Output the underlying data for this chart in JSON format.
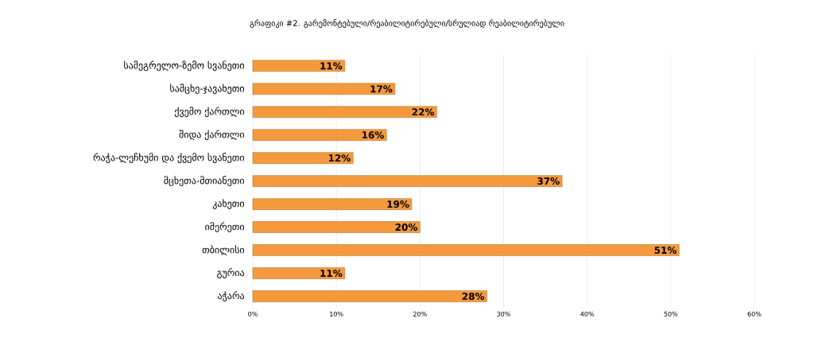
{
  "chart_data": {
    "type": "bar",
    "orientation": "horizontal",
    "title": "გრაფიკი #2. გარემონტებული/რეაბილიტირებული/სრულიად რეაბილიტირებული",
    "categories": [
      "სამეგრელო-ზემო სვანეთი",
      "სამცხე-ჯავახეთი",
      "ქვემო ქართლი",
      "შიდა ქართლი",
      "რაჭა-ლეჩხუმი და ქვემო სვანეთი",
      "მცხეთა-მთიანეთი",
      "კახეთი",
      "იმერეთი",
      "თბილისი",
      "გურია",
      "აჭარა"
    ],
    "values": [
      11,
      17,
      22,
      16,
      12,
      37,
      19,
      20,
      51,
      11,
      28
    ],
    "value_labels": [
      "11%",
      "17%",
      "22%",
      "16%",
      "12%",
      "37%",
      "19%",
      "20%",
      "51%",
      "11%",
      "28%"
    ],
    "color": "#f59a3c",
    "xlim": [
      0,
      60
    ],
    "xticks": [
      {
        "value": 0,
        "label": "0%"
      },
      {
        "value": 10,
        "label": "10%"
      },
      {
        "value": 20,
        "label": "20%"
      },
      {
        "value": 30,
        "label": "30%"
      },
      {
        "value": 40,
        "label": "40%"
      },
      {
        "value": 50,
        "label": "50%"
      },
      {
        "value": 60,
        "label": "60%"
      }
    ],
    "grid": "x"
  }
}
